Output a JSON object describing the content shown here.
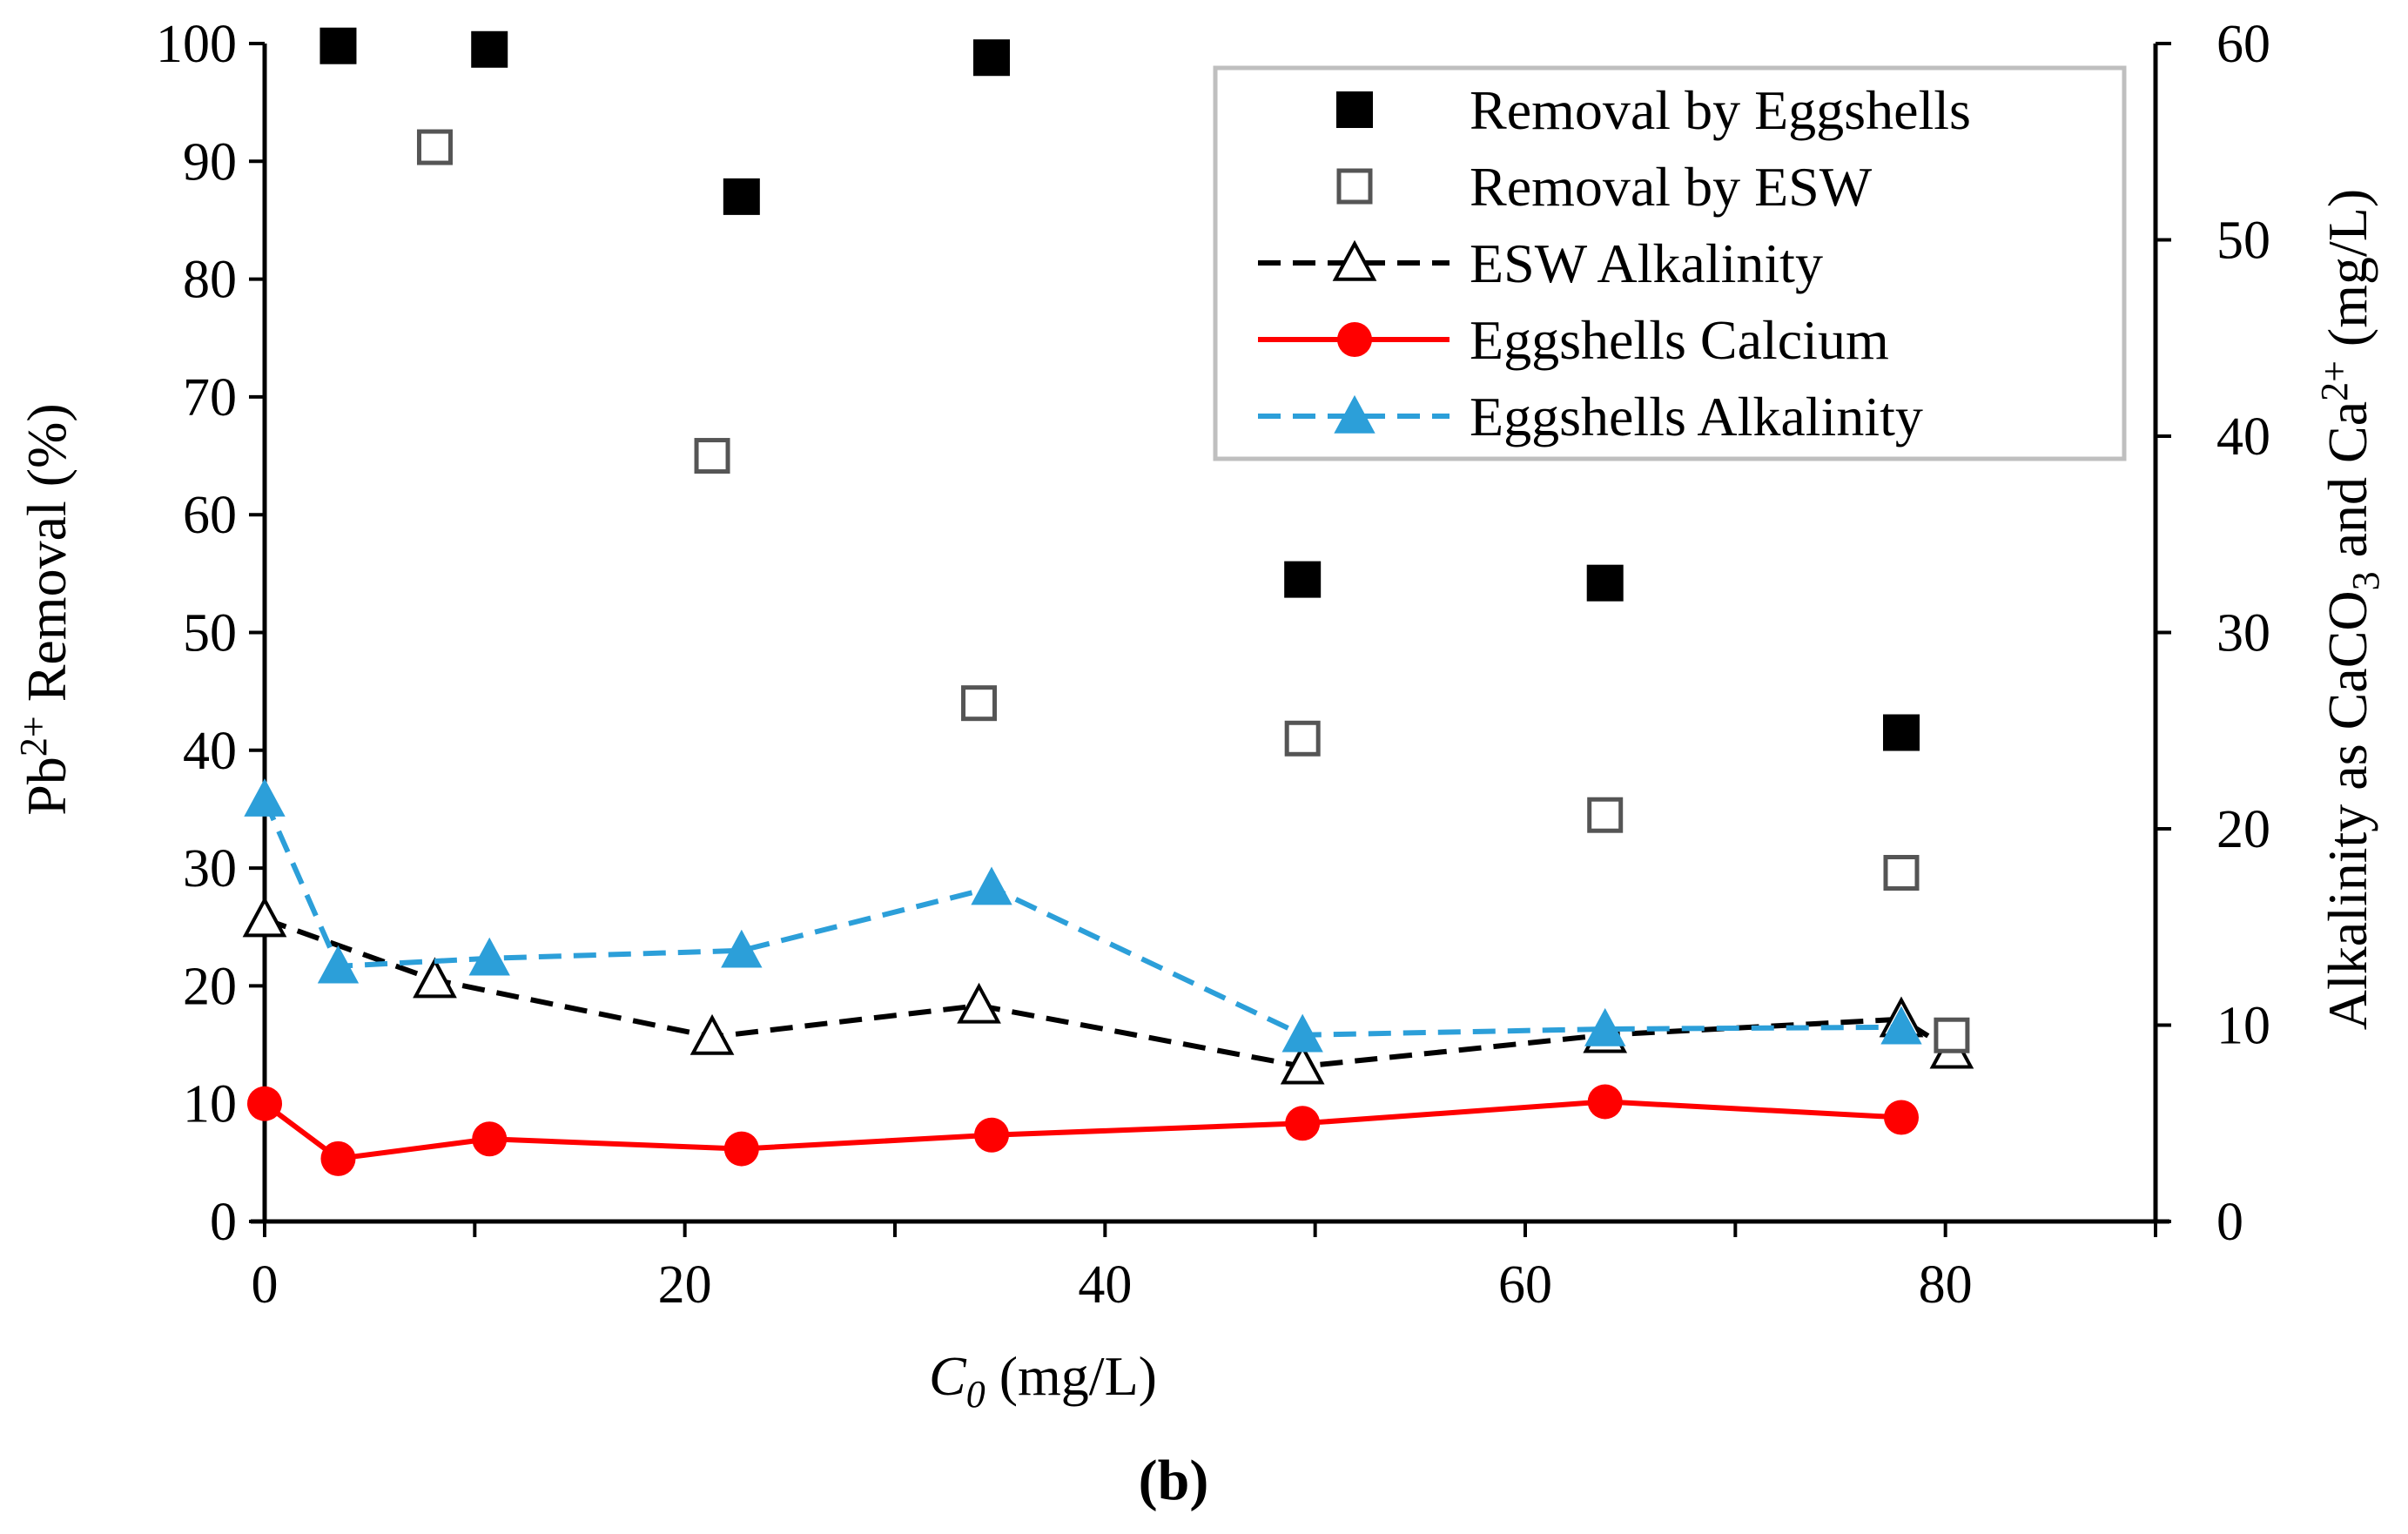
{
  "chart_data": {
    "type": "scatter",
    "panel_label": "(b)",
    "xlabel": {
      "symbol": "C",
      "subscript": "0",
      "unit": " (mg/L)"
    },
    "ylabel_left": {
      "pre": "Pb",
      "sup": "2+",
      "post": " Removal (%)"
    },
    "ylabel_right": {
      "p1": "Alkalinity as CaCO",
      "sub": "3",
      "p2": " and Ca",
      "sup": "2+",
      "p3": " (mg/L)"
    },
    "xlim": [
      0,
      90
    ],
    "ylim_left": [
      0,
      100
    ],
    "ylim_right": [
      0,
      60
    ],
    "x_ticks": [
      0,
      20,
      40,
      60,
      80
    ],
    "y_left_ticks": [
      0,
      10,
      20,
      30,
      40,
      50,
      60,
      70,
      80,
      90,
      100
    ],
    "y_right_ticks": [
      0,
      10,
      20,
      30,
      40,
      50,
      60
    ],
    "colors": {
      "black": "#000000",
      "gray": "#555555",
      "red": "#ff0000",
      "blue": "#2c9fd9",
      "legend_border": "#bfbfbf"
    },
    "series": [
      {
        "name": "Removal by Eggshells",
        "axis": "left",
        "style": "marker",
        "marker": "square-filled",
        "color": "#000000",
        "x": [
          3.5,
          10.7,
          22.7,
          34.6,
          49.4,
          63.8,
          77.9
        ],
        "y": [
          99.8,
          99.5,
          87.0,
          98.8,
          54.5,
          54.2,
          41.5
        ]
      },
      {
        "name": "Removal by ESW",
        "axis": "left",
        "style": "marker",
        "marker": "square-open",
        "color": "#555555",
        "x": [
          8.1,
          21.3,
          34.0,
          49.4,
          63.8,
          77.9,
          80.3
        ],
        "y": [
          91.2,
          65.0,
          44.0,
          41.0,
          34.5,
          29.6,
          15.8
        ]
      },
      {
        "name": "ESW Alkalinity",
        "axis": "right",
        "style": "dashed-line",
        "marker": "triangle-open",
        "color": "#000000",
        "x": [
          0.0,
          8.1,
          21.3,
          34.0,
          49.4,
          63.8,
          77.9,
          80.3
        ],
        "y": [
          15.4,
          12.3,
          9.4,
          11.0,
          7.9,
          9.5,
          10.3,
          8.7
        ]
      },
      {
        "name": "Eggshells Calcium",
        "axis": "right",
        "style": "solid-line",
        "marker": "circle-filled",
        "color": "#ff0000",
        "x": [
          0.0,
          3.5,
          10.7,
          22.7,
          34.6,
          49.4,
          63.8,
          77.9
        ],
        "y": [
          6.0,
          3.2,
          4.2,
          3.7,
          4.4,
          5.0,
          6.1,
          5.3
        ]
      },
      {
        "name": "Eggshells Alkalinity",
        "axis": "right",
        "style": "dashed-line",
        "marker": "triangle-filled",
        "color": "#2c9fd9",
        "x": [
          0.0,
          3.5,
          10.7,
          22.7,
          34.6,
          49.4,
          63.8,
          77.9
        ],
        "y": [
          21.5,
          13.0,
          13.4,
          13.8,
          17.0,
          9.5,
          9.8,
          9.9
        ]
      }
    ],
    "legend": {
      "position": "top-right",
      "entries": [
        "Removal by Eggshells",
        "Removal by ESW",
        "ESW Alkalinity",
        "Eggshells Calcium",
        "Eggshells Alkalinity"
      ]
    }
  }
}
